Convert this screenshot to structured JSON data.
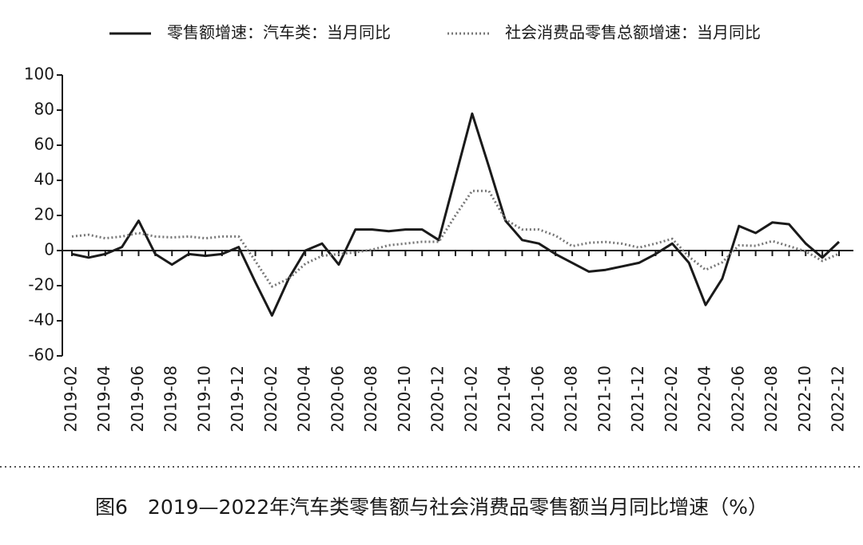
{
  "chart_data": {
    "type": "line",
    "caption": "图6　2019—2022年汽车类零售额与社会消费品零售额当月同比增速（%）",
    "categories": [
      "2019-02",
      null,
      "2019-04",
      null,
      "2019-06",
      null,
      "2019-08",
      null,
      "2019-10",
      null,
      "2019-12",
      null,
      "2020-02",
      null,
      "2020-04",
      null,
      "2020-06",
      null,
      "2020-08",
      null,
      "2020-10",
      null,
      "2020-12",
      null,
      "2021-02",
      null,
      "2021-04",
      null,
      "2021-06",
      null,
      "2021-08",
      null,
      "2021-10",
      null,
      "2021-12",
      null,
      "2022-02",
      null,
      "2022-04",
      null,
      "2022-06",
      null,
      "2022-08",
      null,
      "2022-10",
      null,
      "2022-12"
    ],
    "series": [
      {
        "name": "零售额增速：汽车类：当月同比",
        "color": "#1a1a1a",
        "dash": "solid",
        "values": [
          -2,
          -4,
          -2,
          2,
          17,
          -2,
          -8,
          -2,
          -3,
          -2,
          2,
          -18,
          -37,
          -16,
          0,
          4,
          -8,
          12,
          12,
          11,
          12,
          12,
          6,
          42,
          78,
          48,
          17,
          6,
          4,
          -2,
          -7,
          -12,
          -11,
          -9,
          -7,
          -2,
          4,
          -7,
          -31,
          -16,
          14,
          10,
          16,
          15,
          4,
          -4,
          5
        ]
      },
      {
        "name": "社会消费品零售总额增速：当月同比",
        "color": "#777777",
        "dash": "dotted",
        "values": [
          8,
          9,
          7,
          8,
          10,
          8,
          7.5,
          8,
          7,
          8,
          8,
          -6,
          -20.5,
          -16,
          -7.5,
          -3,
          -2,
          -1,
          0.5,
          3,
          4,
          5,
          5,
          20,
          34,
          34,
          17.7,
          12,
          12,
          8.5,
          2.5,
          4.4,
          4.9,
          3.9,
          1.7,
          4,
          6.7,
          -3.5,
          -11,
          -6.7,
          3,
          2.7,
          5.4,
          2.5,
          -0.5,
          -5.9,
          -1.8
        ]
      }
    ],
    "ylim": [
      -60,
      100
    ],
    "yticks": [
      -60,
      -40,
      -20,
      0,
      20,
      40,
      60,
      80,
      100
    ]
  }
}
